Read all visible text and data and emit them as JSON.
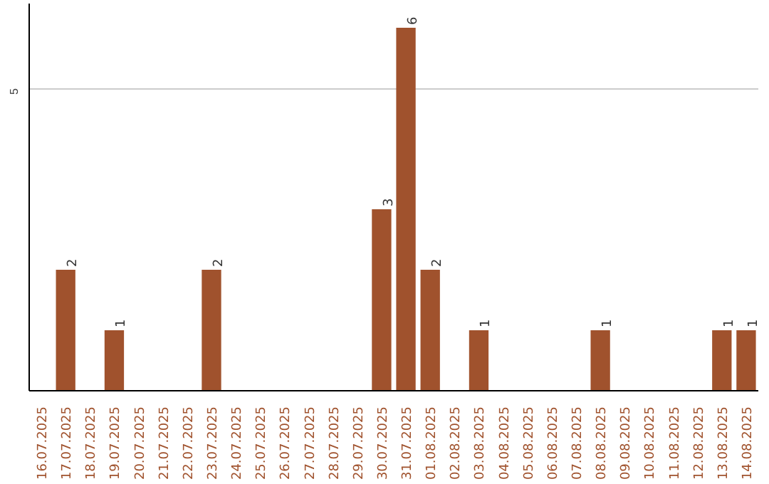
{
  "chart_data": {
    "type": "bar",
    "categories": [
      "16.07.2025",
      "17.07.2025",
      "18.07.2025",
      "19.07.2025",
      "20.07.2025",
      "21.07.2025",
      "22.07.2025",
      "23.07.2025",
      "24.07.2025",
      "25.07.2025",
      "26.07.2025",
      "27.07.2025",
      "28.07.2025",
      "29.07.2025",
      "30.07.2025",
      "31.07.2025",
      "01.08.2025",
      "02.08.2025",
      "03.08.2025",
      "04.08.2025",
      "05.08.2025",
      "06.08.2025",
      "07.08.2025",
      "08.08.2025",
      "09.08.2025",
      "10.08.2025",
      "11.08.2025",
      "12.08.2025",
      "13.08.2025",
      "14.08.2025"
    ],
    "values": [
      0,
      2,
      0,
      1,
      0,
      0,
      0,
      2,
      0,
      0,
      0,
      0,
      0,
      0,
      3,
      6,
      2,
      0,
      1,
      0,
      0,
      0,
      0,
      1,
      0,
      0,
      0,
      0,
      1,
      1
    ],
    "value_labels": [
      null,
      "2",
      null,
      "1",
      null,
      null,
      null,
      "2",
      null,
      null,
      null,
      null,
      null,
      null,
      "3",
      "6",
      "2",
      null,
      "1",
      null,
      null,
      null,
      null,
      "1",
      null,
      null,
      null,
      null,
      "1",
      "1"
    ],
    "color": "#a0522d",
    "ylim": [
      0,
      6.4
    ],
    "yticks": [
      5
    ],
    "grid": "y"
  }
}
